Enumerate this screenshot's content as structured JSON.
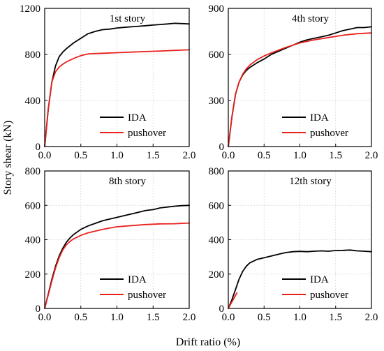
{
  "figure": {
    "ylabel": "Story shear (kN)",
    "xlabel": "Drift ratio (%)"
  },
  "colors": {
    "IDA": "#000000",
    "pushover": "#e8211b"
  },
  "chart_data": [
    {
      "type": "line",
      "title": "1st story",
      "xlim": [
        0,
        2.0
      ],
      "ylim": [
        0,
        1200
      ],
      "xticks": [
        "0.0",
        "0.5",
        "1.0",
        "1.5",
        "2.0"
      ],
      "xtick_values": [
        0,
        0.5,
        1.0,
        1.5,
        2.0
      ],
      "yticks": [
        "0",
        "400",
        "800",
        "1200"
      ],
      "ytick_values": [
        0,
        400,
        800,
        1200
      ],
      "legend_position": "bottom-right",
      "series": [
        {
          "name": "IDA",
          "x": [
            0,
            0.05,
            0.1,
            0.15,
            0.2,
            0.25,
            0.3,
            0.4,
            0.5,
            0.6,
            0.7,
            0.8,
            0.9,
            1.0,
            1.1,
            1.2,
            1.3,
            1.4,
            1.5,
            1.6,
            1.7,
            1.8,
            1.9,
            2.0
          ],
          "y": [
            0,
            330,
            560,
            700,
            780,
            820,
            850,
            900,
            940,
            980,
            1000,
            1015,
            1020,
            1030,
            1035,
            1040,
            1045,
            1050,
            1055,
            1060,
            1065,
            1070,
            1068,
            1065
          ]
        },
        {
          "name": "pushover",
          "x": [
            0,
            0.05,
            0.1,
            0.15,
            0.2,
            0.25,
            0.3,
            0.4,
            0.5,
            0.6,
            0.8,
            1.0,
            1.2,
            1.4,
            1.6,
            1.8,
            2.0
          ],
          "y": [
            0,
            330,
            560,
            650,
            690,
            715,
            735,
            765,
            790,
            805,
            810,
            815,
            820,
            825,
            830,
            835,
            840
          ]
        }
      ]
    },
    {
      "type": "line",
      "title": "4th story",
      "xlim": [
        0,
        2.0
      ],
      "ylim": [
        0,
        900
      ],
      "xticks": [
        "0.0",
        "0.5",
        "1.0",
        "1.5",
        "2.0"
      ],
      "xtick_values": [
        0,
        0.5,
        1.0,
        1.5,
        2.0
      ],
      "yticks": [
        "0",
        "300",
        "600",
        "900"
      ],
      "ytick_values": [
        0,
        300,
        600,
        900
      ],
      "legend_position": "bottom-right",
      "series": [
        {
          "name": "IDA",
          "x": [
            0,
            0.05,
            0.1,
            0.15,
            0.2,
            0.25,
            0.3,
            0.4,
            0.5,
            0.6,
            0.7,
            0.8,
            0.9,
            1.0,
            1.1,
            1.2,
            1.3,
            1.4,
            1.5,
            1.6,
            1.7,
            1.8,
            1.9,
            2.0
          ],
          "y": [
            0,
            190,
            340,
            420,
            465,
            495,
            515,
            545,
            570,
            600,
            620,
            640,
            660,
            680,
            695,
            705,
            715,
            725,
            740,
            755,
            765,
            775,
            775,
            780
          ]
        },
        {
          "name": "pushover",
          "x": [
            0,
            0.05,
            0.1,
            0.15,
            0.2,
            0.25,
            0.3,
            0.4,
            0.5,
            0.6,
            0.8,
            1.0,
            1.2,
            1.4,
            1.6,
            1.8,
            2.0
          ],
          "y": [
            0,
            190,
            340,
            420,
            470,
            505,
            530,
            565,
            590,
            610,
            645,
            675,
            695,
            710,
            725,
            735,
            740
          ]
        }
      ]
    },
    {
      "type": "line",
      "title": "8th story",
      "xlim": [
        0,
        2.0
      ],
      "ylim": [
        0,
        800
      ],
      "xticks": [
        "0.0",
        "0.5",
        "1.0",
        "1.5",
        "2.0"
      ],
      "xtick_values": [
        0,
        0.5,
        1.0,
        1.5,
        2.0
      ],
      "yticks": [
        "0",
        "200",
        "400",
        "600",
        "800"
      ],
      "ytick_values": [
        0,
        200,
        400,
        600,
        800
      ],
      "legend_position": "bottom-right",
      "series": [
        {
          "name": "IDA",
          "x": [
            0,
            0.05,
            0.1,
            0.15,
            0.2,
            0.25,
            0.3,
            0.35,
            0.4,
            0.5,
            0.6,
            0.7,
            0.8,
            0.9,
            1.0,
            1.1,
            1.2,
            1.3,
            1.4,
            1.5,
            1.6,
            1.7,
            1.8,
            1.9,
            2.0
          ],
          "y": [
            0,
            85,
            170,
            245,
            305,
            350,
            385,
            410,
            430,
            460,
            480,
            495,
            510,
            520,
            530,
            540,
            550,
            560,
            570,
            575,
            585,
            590,
            595,
            598,
            600
          ]
        },
        {
          "name": "pushover",
          "x": [
            0,
            0.05,
            0.1,
            0.15,
            0.2,
            0.25,
            0.3,
            0.35,
            0.4,
            0.5,
            0.6,
            0.7,
            0.8,
            0.9,
            1.0,
            1.2,
            1.4,
            1.5,
            1.6,
            1.8,
            2.0
          ],
          "y": [
            0,
            80,
            160,
            235,
            295,
            340,
            370,
            390,
            405,
            425,
            440,
            450,
            460,
            468,
            475,
            482,
            488,
            490,
            492,
            493,
            497
          ]
        }
      ]
    },
    {
      "type": "line",
      "title": "12th story",
      "xlim": [
        0,
        2.0
      ],
      "ylim": [
        0,
        800
      ],
      "xticks": [
        "0.0",
        "0.5",
        "1.0",
        "1.5",
        "2.0"
      ],
      "xtick_values": [
        0,
        0.5,
        1.0,
        1.5,
        2.0
      ],
      "yticks": [
        "0",
        "200",
        "400",
        "600",
        "800"
      ],
      "ytick_values": [
        0,
        200,
        400,
        600,
        800
      ],
      "legend_position": "bottom-right",
      "series": [
        {
          "name": "IDA",
          "x": [
            0,
            0.05,
            0.1,
            0.15,
            0.2,
            0.25,
            0.3,
            0.4,
            0.5,
            0.6,
            0.7,
            0.8,
            0.9,
            1.0,
            1.1,
            1.2,
            1.3,
            1.4,
            1.5,
            1.6,
            1.7,
            1.8,
            1.9,
            2.0
          ],
          "y": [
            0,
            50,
            110,
            170,
            215,
            245,
            265,
            285,
            295,
            305,
            315,
            325,
            330,
            332,
            330,
            333,
            335,
            333,
            337,
            338,
            340,
            335,
            333,
            330
          ]
        },
        {
          "name": "pushover",
          "x": [
            0,
            0.04,
            0.08,
            0.12
          ],
          "y": [
            0,
            30,
            60,
            90
          ]
        }
      ]
    }
  ]
}
